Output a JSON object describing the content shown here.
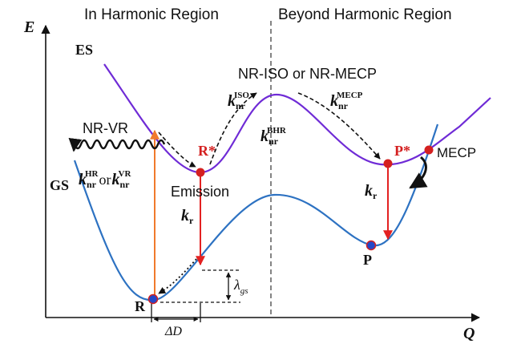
{
  "regions": {
    "left": "In Harmonic Region",
    "right": "Beyond Harmonic Region"
  },
  "axes": {
    "y_label": "E",
    "x_label": "Q"
  },
  "states": {
    "es": "ES",
    "gs": "GS",
    "r_star": "R*",
    "p_star": "P*",
    "r": "R",
    "p": "P",
    "mecp": "MECP"
  },
  "processes": {
    "nr_vr": "NR-VR",
    "nr_iso": "NR-ISO or NR-MECP",
    "emission": "Emission"
  },
  "rates": {
    "k": "k",
    "nr": "nr",
    "r": "r",
    "iso": "ISO",
    "mecp": "MECP",
    "bhr": "BHR",
    "hr": "HR",
    "vr": "VR",
    "or": "or"
  },
  "symbols": {
    "lambda": "λ",
    "gs": "gs",
    "delta_d": "ΔD"
  },
  "colors": {
    "es_curve": "#6f2bd6",
    "gs_curve": "#2d72c2",
    "emission_arrow": "#e32121",
    "absorption_arrow": "#f07a2c",
    "marker_red": "#d42020",
    "marker_blue": "#2547c8",
    "black": "#111111"
  }
}
